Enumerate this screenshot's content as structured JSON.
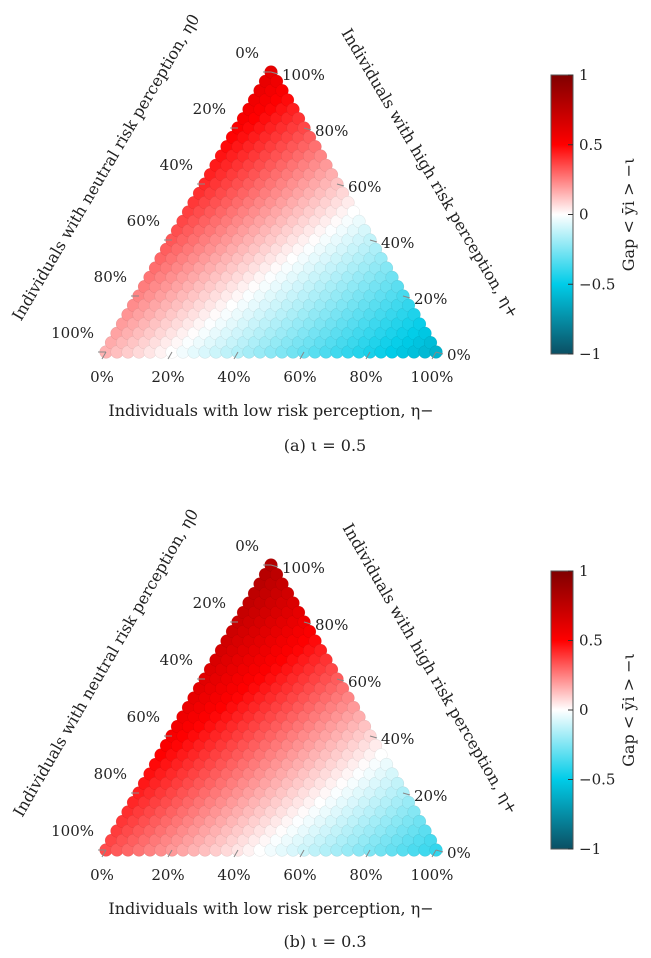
{
  "chart_data": [
    {
      "type": "ternary-heatmap",
      "caption": "(a) ι = 0.5",
      "axes": {
        "bottom": {
          "label": "Individuals with low risk perception, η−",
          "ticks": [
            "0%",
            "20%",
            "40%",
            "60%",
            "80%",
            "100%"
          ]
        },
        "left": {
          "label": "Individuals with neutral risk perception, η0",
          "ticks": [
            "100%",
            "80%",
            "60%",
            "40%",
            "20%",
            "0%"
          ]
        },
        "right": {
          "label": "Individuals with high risk perception, η+",
          "ticks": [
            "0%",
            "20%",
            "40%",
            "60%",
            "80%",
            "100%"
          ]
        }
      },
      "colorbar": {
        "label": "Gap < ȳi > −ι",
        "min": -1,
        "max": 1,
        "ticks": [
          "1",
          "0.5",
          "0",
          "−0.5",
          "−1"
        ]
      },
      "corner_values": {
        "neutral_100": 0.15,
        "low_100": -0.6,
        "high_100": 0.6
      }
    },
    {
      "type": "ternary-heatmap",
      "caption": "(b) ι = 0.3",
      "axes": {
        "bottom": {
          "label": "Individuals with low risk perception, η−",
          "ticks": [
            "0%",
            "20%",
            "40%",
            "60%",
            "80%",
            "100%"
          ]
        },
        "left": {
          "label": "Individuals with neutral risk perception, η0",
          "ticks": [
            "100%",
            "80%",
            "60%",
            "40%",
            "20%",
            "0%"
          ]
        },
        "right": {
          "label": "Individuals with high risk perception, η+",
          "ticks": [
            "0%",
            "20%",
            "40%",
            "60%",
            "80%",
            "100%"
          ]
        }
      },
      "colorbar": {
        "label": "Gap < ȳi > −ι",
        "min": -1,
        "max": 1,
        "ticks": [
          "1",
          "0.5",
          "0",
          "−0.5",
          "−1"
        ]
      },
      "corner_values": {
        "neutral_100": 0.35,
        "low_100": -0.4,
        "high_100": 0.8
      }
    }
  ],
  "colors": {
    "scale": [
      "#0b4f63",
      "#00cce8",
      "#ffffff",
      "#ff0000",
      "#800000"
    ]
  }
}
